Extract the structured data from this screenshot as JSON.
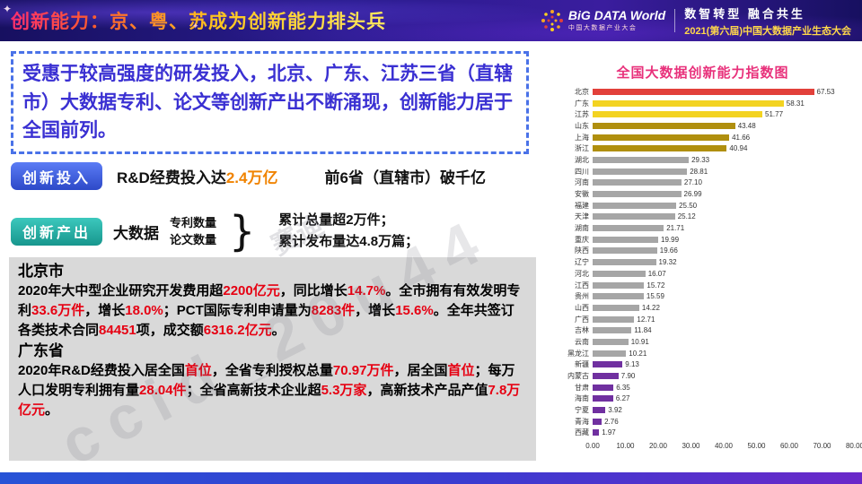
{
  "header": {
    "title": "创新能力：京、粤、苏成为创新能力排头兵",
    "logo": {
      "brand": "BiG DATA World",
      "brand_sub": "中国大数据产业大会"
    },
    "slogan": "数智转型  融合共生",
    "event": "2021(第六届)中国大数据产业生态大会"
  },
  "icons": {
    "sparkle": "✦"
  },
  "summary": {
    "text": "受惠于较高强度的研发投入，北京、广东、江苏三省（直辖市）大数据专利、论文等创新产出不断涌现，创新能力居于全国前列。"
  },
  "investment": {
    "label": "创新投入",
    "part1": [
      {
        "t": "R&D经费投入达"
      },
      {
        "t": "2.4万亿",
        "c": "hl-orange"
      }
    ],
    "part2": "前6省（直辖市）破千亿"
  },
  "output": {
    "label": "创新产出",
    "prefix": "大数据",
    "stack": [
      "专利数量",
      "论文数量"
    ],
    "brace": "}",
    "results": [
      "累计总量超2万件；",
      "累计发布量达4.8万篇；"
    ]
  },
  "detail": {
    "beijing": {
      "title": "北京市",
      "segments": [
        {
          "t": "2020年大中型企业研究开发费用超"
        },
        {
          "t": "2200亿元",
          "c": "hl"
        },
        {
          "t": "，同比增长"
        },
        {
          "t": "14.7%",
          "c": "hl"
        },
        {
          "t": "。全市拥有有效发明专利"
        },
        {
          "t": "33.6万件",
          "c": "hl"
        },
        {
          "t": "，增长"
        },
        {
          "t": "18.0%",
          "c": "hl"
        },
        {
          "t": "；PCT国际专利申请量为"
        },
        {
          "t": "8283件",
          "c": "hl"
        },
        {
          "t": "，增长"
        },
        {
          "t": "15.6%",
          "c": "hl"
        },
        {
          "t": "。全年共签订各类技术合同"
        },
        {
          "t": "84451",
          "c": "hl"
        },
        {
          "t": "项，成交额"
        },
        {
          "t": "6316.2亿元",
          "c": "hl"
        },
        {
          "t": "。"
        }
      ]
    },
    "guangdong": {
      "title": "广东省",
      "segments": [
        {
          "t": "2020年R&D经费投入居全国"
        },
        {
          "t": "首位",
          "c": "hl"
        },
        {
          "t": "，全省专利授权总量"
        },
        {
          "t": "70.97万件",
          "c": "hl"
        },
        {
          "t": "，居全国"
        },
        {
          "t": "首位",
          "c": "hl"
        },
        {
          "t": "；每万人口发明专利拥有量"
        },
        {
          "t": "28.04件",
          "c": "hl"
        },
        {
          "t": "；全省高新技术企业超"
        },
        {
          "t": "5.3万家",
          "c": "hl"
        },
        {
          "t": "，高新技术产品产值"
        },
        {
          "t": "7.8万亿元",
          "c": "hl"
        },
        {
          "t": "。"
        }
      ]
    }
  },
  "chart_data": {
    "type": "bar",
    "orientation": "horizontal",
    "title": "全国大数据创新能力指数图",
    "categories": [
      "北京",
      "广东",
      "江苏",
      "山东",
      "上海",
      "浙江",
      "湖北",
      "四川",
      "河南",
      "安徽",
      "福建",
      "天津",
      "湖南",
      "重庆",
      "陕西",
      "辽宁",
      "河北",
      "江西",
      "贵州",
      "山西",
      "广西",
      "吉林",
      "云南",
      "黑龙江",
      "新疆",
      "内蒙古",
      "甘肃",
      "海南",
      "宁夏",
      "青海",
      "西藏"
    ],
    "values": [
      67.53,
      58.31,
      51.77,
      43.48,
      41.66,
      40.94,
      29.33,
      28.81,
      27.1,
      26.99,
      25.5,
      25.12,
      21.71,
      19.99,
      19.66,
      19.32,
      16.07,
      15.72,
      15.59,
      14.22,
      12.71,
      11.84,
      10.91,
      10.21,
      9.13,
      7.9,
      6.35,
      6.27,
      3.92,
      2.76,
      1.97
    ],
    "colors": [
      "#e2403a",
      "#f3d321",
      "#f3d321",
      "#b08f0e",
      "#b08f0e",
      "#b08f0e",
      "#a6a6a6",
      "#a6a6a6",
      "#a6a6a6",
      "#a6a6a6",
      "#a6a6a6",
      "#a6a6a6",
      "#a6a6a6",
      "#a6a6a6",
      "#a6a6a6",
      "#a6a6a6",
      "#a6a6a6",
      "#a6a6a6",
      "#a6a6a6",
      "#a6a6a6",
      "#a6a6a6",
      "#a6a6a6",
      "#a6a6a6",
      "#a6a6a6",
      "#7030a0",
      "#7030a0",
      "#7030a0",
      "#7030a0",
      "#7030a0",
      "#7030a0",
      "#7030a0"
    ],
    "xlim": [
      0,
      80
    ],
    "x_ticks": [
      "0.00",
      "10.00",
      "20.00",
      "30.00",
      "40.00",
      "50.00",
      "60.00",
      "70.00",
      "80.00"
    ],
    "legend": "none",
    "grid": "off"
  },
  "watermark": {
    "text": "ccid_20u44",
    "text2": "赛迪"
  },
  "palette": {
    "title_pink": "#e8317b",
    "hl_red": "#e60012",
    "hl_orange": "#f08300",
    "summary_blue": "#3a30d2",
    "event_yellow": "#ffd84a",
    "bar_red": "#e2403a",
    "bar_yellow": "#f3d321",
    "bar_gold": "#b08f0e",
    "bar_gray": "#a6a6a6",
    "bar_purple": "#7030a0"
  }
}
